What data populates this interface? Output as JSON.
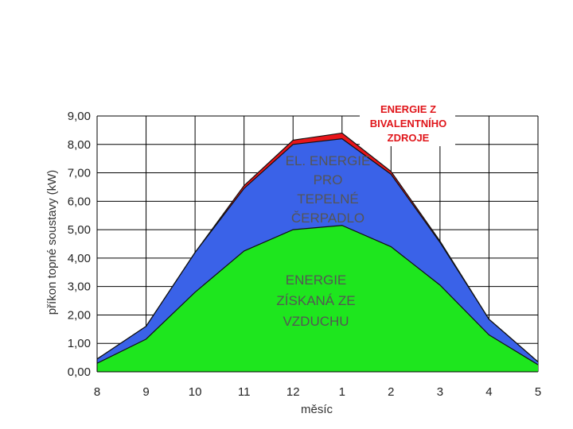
{
  "chart_data": {
    "type": "area",
    "xlabel": "měsíc",
    "ylabel": "příkon topné soustavy (kW)",
    "categories": [
      "8",
      "9",
      "10",
      "11",
      "12",
      "1",
      "2",
      "3",
      "4",
      "5"
    ],
    "ylim": [
      0,
      9
    ],
    "yticks": [
      "0,00",
      "1,00",
      "2,00",
      "3,00",
      "4,00",
      "5,00",
      "6,00",
      "7,00",
      "8,00",
      "9,00"
    ],
    "grid": true,
    "stacked": true,
    "series": [
      {
        "values": [
          0.3,
          1.15,
          2.8,
          4.25,
          5.0,
          5.15,
          4.4,
          3.05,
          1.3,
          0.25
        ],
        "color": "#1ee61e"
      },
      {
        "values": [
          0.45,
          1.6,
          4.2,
          6.45,
          8.0,
          8.2,
          6.95,
          4.55,
          1.85,
          0.35
        ],
        "color": "#3a62e8"
      },
      {
        "values": [
          0.45,
          1.6,
          4.2,
          6.55,
          8.15,
          8.4,
          7.05,
          4.6,
          1.85,
          0.35
        ],
        "color": "#e8151a"
      }
    ],
    "area_labels": {
      "air": [
        "ENERGIE",
        "ZÍSKANÁ ZE",
        "VZDUCHU"
      ],
      "electric": [
        "EL. ENERGIE",
        "PRO",
        "TEPELNÉ",
        "ČERPADLO"
      ],
      "bivalent": [
        "ENERGIE Z",
        "BIVALENTNÍHO",
        "ZDROJE"
      ]
    }
  }
}
